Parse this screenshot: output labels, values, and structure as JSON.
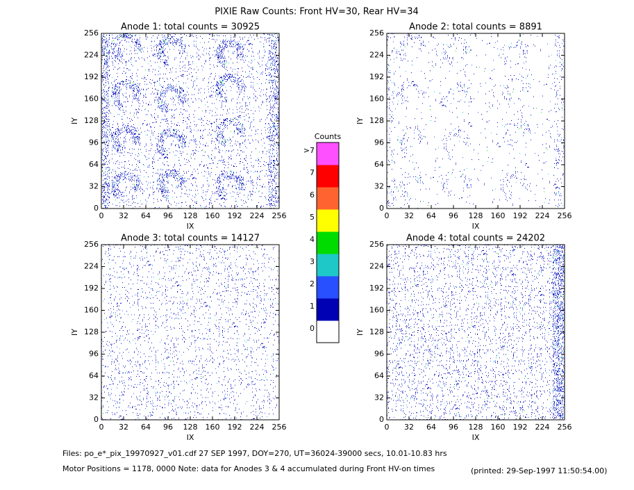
{
  "title": "PIXIE Raw Counts:  Front HV=30, Rear HV=34",
  "chart_data": [
    {
      "type": "heatmap",
      "title": "Anode 1: total counts = 30925",
      "xlabel": "IX",
      "ylabel": "IY",
      "xlim": [
        0,
        256
      ],
      "ylim": [
        0,
        256
      ],
      "xticks": [
        0,
        32,
        64,
        96,
        128,
        160,
        192,
        224,
        256
      ],
      "yticks": [
        0,
        32,
        64,
        96,
        128,
        160,
        192,
        224,
        256
      ]
    },
    {
      "type": "heatmap",
      "title": "Anode 2: total counts = 8891",
      "xlabel": "IX",
      "ylabel": "IY",
      "xlim": [
        0,
        256
      ],
      "ylim": [
        0,
        256
      ],
      "xticks": [
        0,
        32,
        64,
        96,
        128,
        160,
        192,
        224,
        256
      ],
      "yticks": [
        0,
        32,
        64,
        96,
        128,
        160,
        192,
        224,
        256
      ]
    },
    {
      "type": "heatmap",
      "title": "Anode 3: total counts = 14127",
      "xlabel": "IX",
      "ylabel": "IY",
      "xlim": [
        0,
        256
      ],
      "ylim": [
        0,
        256
      ],
      "xticks": [
        0,
        32,
        64,
        96,
        128,
        160,
        192,
        224,
        256
      ],
      "yticks": [
        0,
        32,
        64,
        96,
        128,
        160,
        192,
        224,
        256
      ]
    },
    {
      "type": "heatmap",
      "title": "Anode 4: total counts = 24202",
      "xlabel": "IX",
      "ylabel": "IY",
      "xlim": [
        0,
        256
      ],
      "ylim": [
        0,
        256
      ],
      "xticks": [
        0,
        32,
        64,
        96,
        128,
        160,
        192,
        224,
        256
      ],
      "yticks": [
        0,
        32,
        64,
        96,
        128,
        160,
        192,
        224,
        256
      ]
    }
  ],
  "colorbar": {
    "title": "Counts",
    "labels": [
      "0",
      "1",
      "2",
      "3",
      "4",
      "5",
      "6",
      "7",
      ">7"
    ],
    "colors": [
      "#ffffff",
      "#0000b4",
      "#2850ff",
      "#1ec8c8",
      "#00dc00",
      "#ffff00",
      "#ff6430",
      "#ff0000",
      "#ff50ff"
    ]
  },
  "footer": {
    "files": "Files: po_e*_pix_19970927_v01.cdf    27 SEP 1997, DOY=270, UT=36024-39000 secs, 10.01-10.83 hrs",
    "motor": "Motor Positions = 1178, 0000   Note: data for Anodes 3 & 4 accumulated during Front HV-on times",
    "printed": "(printed: 29-Sep-1997 11:50:54.00)"
  }
}
